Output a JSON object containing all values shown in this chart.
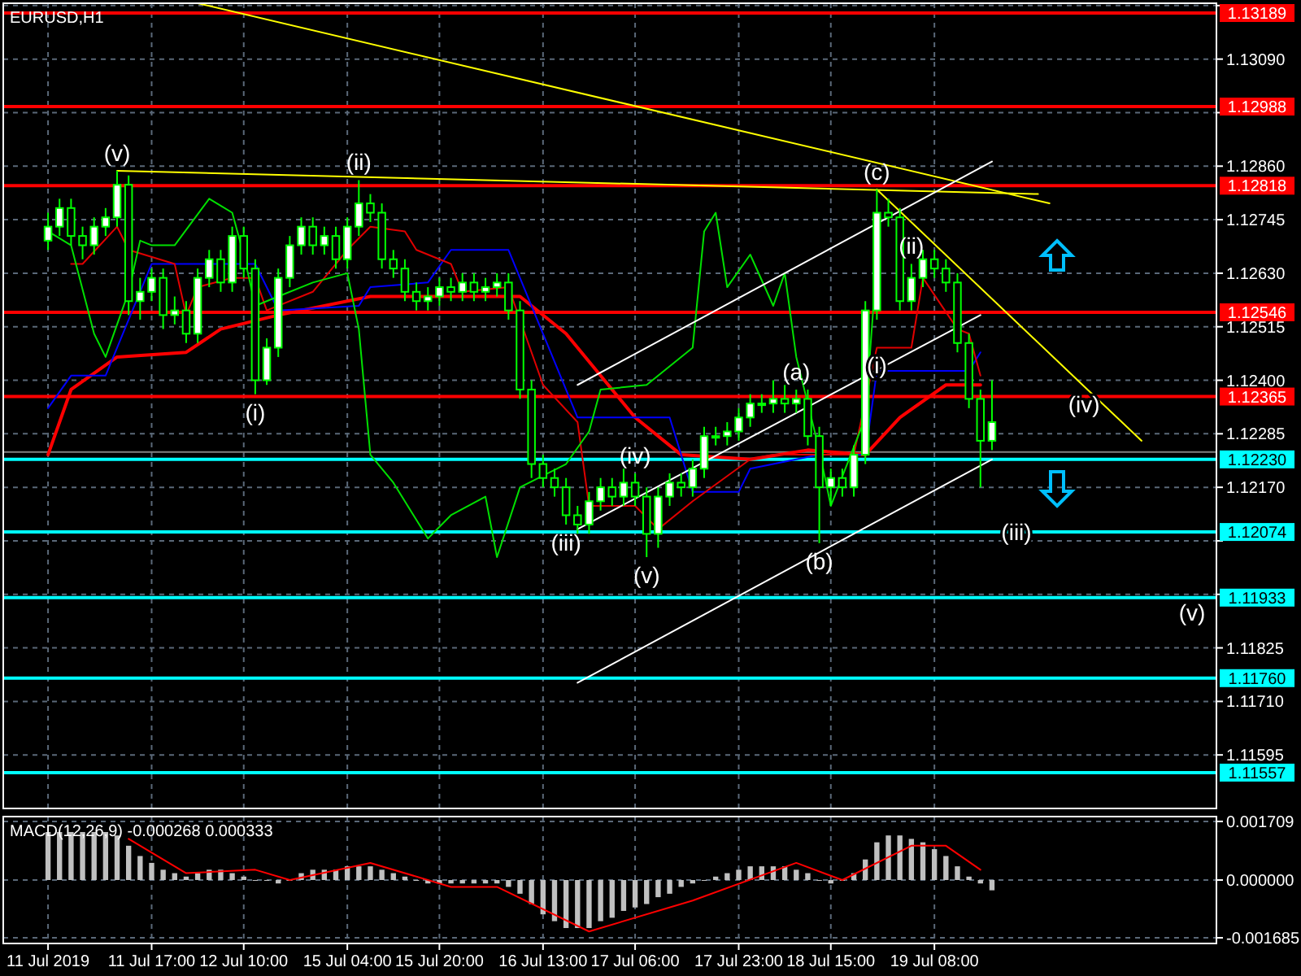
{
  "chart_data": [
    {
      "type": "candlestick",
      "title": "EURUSD,H1",
      "color": "#00ff00",
      "categories": [
        null,
        null,
        null,
        null,
        null,
        null,
        null,
        null,
        null,
        null,
        null,
        null,
        null,
        null,
        null,
        null,
        null,
        null,
        null,
        null,
        null,
        null,
        null,
        null,
        null,
        null,
        null,
        null,
        null,
        null,
        null,
        null,
        null,
        null,
        null,
        null,
        null,
        null,
        null,
        null,
        null,
        null,
        null,
        null,
        null,
        null,
        null,
        null,
        null,
        null,
        null,
        null,
        null,
        null,
        null,
        null,
        null,
        null,
        null,
        null,
        null,
        null,
        null,
        null,
        null,
        null,
        null,
        null,
        null,
        null,
        null,
        null,
        null,
        null,
        null,
        null,
        null,
        null,
        null,
        null,
        null,
        null,
        null,
        null,
        null,
        null,
        null,
        null,
        null,
        null,
        null,
        null,
        null,
        null,
        null,
        null,
        null,
        null,
        null,
        null,
        null,
        null
      ],
      "ohlc": [
        [
          1.127,
          1.1276,
          1.1268,
          1.1273
        ],
        [
          1.1273,
          1.1279,
          1.1271,
          1.1277
        ],
        [
          1.1277,
          1.1279,
          1.1269,
          1.1271
        ],
        [
          1.1271,
          1.1273,
          1.1266,
          1.1269
        ],
        [
          1.1269,
          1.1275,
          1.1267,
          1.1273
        ],
        [
          1.1273,
          1.1277,
          1.1271,
          1.1275
        ],
        [
          1.1275,
          1.1285,
          1.1273,
          1.1282
        ],
        [
          1.1282,
          1.1284,
          1.1254,
          1.1257
        ],
        [
          1.1257,
          1.1262,
          1.1253,
          1.1259
        ],
        [
          1.1259,
          1.1264,
          1.1257,
          1.1262
        ],
        [
          1.1262,
          1.1264,
          1.1251,
          1.1254
        ],
        [
          1.1254,
          1.1258,
          1.1252,
          1.1255
        ],
        [
          1.1255,
          1.1257,
          1.1248,
          1.125
        ],
        [
          1.125,
          1.1264,
          1.1248,
          1.1262
        ],
        [
          1.1262,
          1.1268,
          1.126,
          1.1266
        ],
        [
          1.1266,
          1.1268,
          1.1259,
          1.1261
        ],
        [
          1.1261,
          1.1273,
          1.1259,
          1.1271
        ],
        [
          1.1271,
          1.1273,
          1.1262,
          1.1264
        ],
        [
          1.1264,
          1.1266,
          1.1237,
          1.124
        ],
        [
          1.124,
          1.1249,
          1.1239,
          1.1247
        ],
        [
          1.1247,
          1.1264,
          1.1245,
          1.1262
        ],
        [
          1.1262,
          1.1271,
          1.126,
          1.1269
        ],
        [
          1.1269,
          1.1275,
          1.1267,
          1.1273
        ],
        [
          1.1273,
          1.1275,
          1.1267,
          1.1269
        ],
        [
          1.1269,
          1.1273,
          1.1267,
          1.1271
        ],
        [
          1.1271,
          1.1273,
          1.1264,
          1.1266
        ],
        [
          1.1266,
          1.1275,
          1.1264,
          1.1273
        ],
        [
          1.1273,
          1.1283,
          1.1271,
          1.1278
        ],
        [
          1.1278,
          1.128,
          1.1274,
          1.1276
        ],
        [
          1.1276,
          1.1278,
          1.1264,
          1.1266
        ],
        [
          1.1266,
          1.1268,
          1.1262,
          1.1264
        ],
        [
          1.1264,
          1.1266,
          1.1257,
          1.1259
        ],
        [
          1.1259,
          1.1261,
          1.1255,
          1.1257
        ],
        [
          1.1257,
          1.126,
          1.1255,
          1.1258
        ],
        [
          1.1258,
          1.1262,
          1.1256,
          1.126
        ],
        [
          1.126,
          1.1262,
          1.1257,
          1.1259
        ],
        [
          1.1259,
          1.1263,
          1.1257,
          1.1261
        ],
        [
          1.1261,
          1.1263,
          1.1257,
          1.1259
        ],
        [
          1.1259,
          1.1262,
          1.1257,
          1.126
        ],
        [
          1.126,
          1.1263,
          1.1258,
          1.1261
        ],
        [
          1.1261,
          1.1263,
          1.1253,
          1.1255
        ],
        [
          1.1255,
          1.1257,
          1.1236,
          1.1238
        ],
        [
          1.1238,
          1.124,
          1.1219,
          1.1222
        ],
        [
          1.1222,
          1.1224,
          1.1217,
          1.1219
        ],
        [
          1.1219,
          1.1221,
          1.1215,
          1.1217
        ],
        [
          1.1217,
          1.1219,
          1.1209,
          1.1211
        ],
        [
          1.1211,
          1.1213,
          1.1207,
          1.1209
        ],
        [
          1.1209,
          1.1216,
          1.1207,
          1.1214
        ],
        [
          1.1214,
          1.1219,
          1.1212,
          1.1217
        ],
        [
          1.1217,
          1.1219,
          1.1213,
          1.1215
        ],
        [
          1.1215,
          1.1221,
          1.1213,
          1.1218
        ],
        [
          1.1218,
          1.122,
          1.1213,
          1.1215
        ],
        [
          1.1215,
          1.1217,
          1.1202,
          1.1207
        ],
        [
          1.1207,
          1.1217,
          1.1204,
          1.1215
        ],
        [
          1.1215,
          1.122,
          1.1213,
          1.1218
        ],
        [
          1.1218,
          1.122,
          1.1215,
          1.1217
        ],
        [
          1.1217,
          1.1223,
          1.1215,
          1.1221
        ],
        [
          1.1221,
          1.123,
          1.1219,
          1.1228
        ],
        [
          1.1228,
          1.123,
          1.1226,
          1.1228
        ],
        [
          1.1228,
          1.1231,
          1.1226,
          1.1229
        ],
        [
          1.1229,
          1.1234,
          1.1227,
          1.1232
        ],
        [
          1.1232,
          1.1237,
          1.123,
          1.1235
        ],
        [
          1.1235,
          1.1237,
          1.1233,
          1.1235
        ],
        [
          1.1235,
          1.124,
          1.1233,
          1.1236
        ],
        [
          1.1236,
          1.1239,
          1.1233,
          1.1235
        ],
        [
          1.1235,
          1.1238,
          1.1233,
          1.1236
        ],
        [
          1.1236,
          1.1238,
          1.1226,
          1.1228
        ],
        [
          1.1228,
          1.123,
          1.1205,
          1.1217
        ],
        [
          1.1217,
          1.1221,
          1.1213,
          1.1219
        ],
        [
          1.1219,
          1.1221,
          1.1215,
          1.1217
        ],
        [
          1.1217,
          1.1226,
          1.1215,
          1.1224
        ],
        [
          1.1224,
          1.1257,
          1.1222,
          1.1255
        ],
        [
          1.1255,
          1.1281,
          1.1253,
          1.1276
        ],
        [
          1.1276,
          1.1279,
          1.1273,
          1.1275
        ],
        [
          1.1275,
          1.1277,
          1.1255,
          1.1257
        ],
        [
          1.1257,
          1.1265,
          1.1255,
          1.1262
        ],
        [
          1.1262,
          1.1268,
          1.126,
          1.1266
        ],
        [
          1.1266,
          1.1268,
          1.1262,
          1.1264
        ],
        [
          1.1264,
          1.1266,
          1.1259,
          1.1261
        ],
        [
          1.1261,
          1.1263,
          1.1246,
          1.1248
        ],
        [
          1.1248,
          1.125,
          1.1234,
          1.1236
        ],
        [
          1.1236,
          1.1238,
          1.1217,
          1.1227
        ],
        [
          1.1227,
          1.124,
          1.1225,
          1.1231
        ],
        null,
        null,
        null,
        null,
        null,
        null,
        null,
        null,
        null,
        null,
        null,
        null,
        null,
        null,
        null,
        null,
        null,
        null,
        null
      ],
      "series": [
        {
          "type": "line",
          "color": "#ff0000",
          "values": [
            1.1224,
            null,
            1.1238,
            null,
            null,
            null,
            1.1245,
            null,
            null,
            null,
            null,
            null,
            1.1246,
            null,
            null,
            1.1251,
            null,
            null,
            null,
            null,
            1.1254,
            null,
            null,
            null,
            null,
            null,
            null,
            null,
            1.1258,
            null,
            null,
            null,
            null,
            null,
            null,
            null,
            null,
            null,
            null,
            null,
            null,
            1.1258,
            null,
            null,
            null,
            1.125,
            null,
            null,
            null,
            null,
            null,
            1.1232,
            null,
            null,
            null,
            1.1224,
            null,
            null,
            null,
            null,
            null,
            1.1223,
            null,
            null,
            null,
            null,
            1.1225,
            null,
            null,
            null,
            null,
            1.1224,
            null,
            null,
            1.1232,
            null,
            null,
            null,
            1.1239,
            null,
            null,
            1.1239,
            null,
            null,
            null,
            null,
            null,
            null,
            null,
            null,
            null,
            null,
            null,
            null,
            null,
            null,
            null,
            null,
            null,
            null,
            null,
            null
          ]
        },
        {
          "type": "line",
          "color": "#0000ff",
          "values": [
            1.1234,
            null,
            1.1241,
            null,
            null,
            1.1241,
            null,
            null,
            null,
            1.1265,
            null,
            null,
            null,
            null,
            null,
            null,
            null,
            null,
            1.1265,
            null,
            1.1255,
            null,
            null,
            null,
            null,
            null,
            null,
            1.1256,
            1.126,
            null,
            null,
            null,
            null,
            1.1261,
            null,
            1.1268,
            null,
            null,
            null,
            null,
            1.1268,
            null,
            null,
            1.125,
            null,
            null,
            1.1232,
            null,
            null,
            null,
            1.1232,
            null,
            null,
            null,
            1.1232,
            null,
            1.1216,
            null,
            null,
            null,
            1.1216,
            1.1221,
            null,
            null,
            null,
            null,
            null,
            1.1224,
            null,
            null,
            null,
            1.1224,
            1.1242,
            null,
            null,
            null,
            null,
            null,
            null,
            null,
            1.1242,
            1.1246,
            null,
            null,
            null,
            null,
            null,
            null,
            null,
            null,
            null,
            null,
            null,
            null,
            null,
            null,
            null,
            null,
            null,
            null,
            null,
            null
          ]
        },
        {
          "type": "line",
          "color": "#e00000",
          "values": [
            null,
            null,
            1.1265,
            1.1265,
            null,
            null,
            1.1273,
            1.1268,
            null,
            null,
            null,
            1.1265,
            1.1254,
            1.126,
            null,
            null,
            1.1262,
            null,
            1.1262,
            1.1255,
            null,
            null,
            null,
            1.1259,
            null,
            null,
            1.1268,
            null,
            1.1273,
            null,
            null,
            1.1272,
            1.1268,
            null,
            null,
            1.1265,
            1.1259,
            null,
            null,
            null,
            1.126,
            null,
            null,
            1.1239,
            null,
            null,
            1.1231,
            1.1213,
            null,
            null,
            null,
            1.1213,
            null,
            1.1208,
            null,
            null,
            1.1214,
            null,
            null,
            null,
            null,
            1.1223,
            null,
            1.1224,
            null,
            null,
            null,
            null,
            null,
            null,
            1.1224,
            null,
            1.1247,
            null,
            null,
            1.1247,
            1.1262,
            null,
            null,
            1.1251,
            1.125,
            1.1241,
            null,
            null,
            null,
            null,
            null,
            null,
            null,
            null,
            null,
            null,
            null,
            null,
            null,
            null,
            null,
            null,
            null,
            null,
            null,
            null
          ]
        },
        {
          "type": "line",
          "color": "#00e000",
          "values": [
            1.1272,
            null,
            1.1269,
            null,
            1.125,
            1.1245,
            null,
            1.1259,
            1.127,
            1.1269,
            null,
            1.1269,
            null,
            null,
            1.1279,
            null,
            1.1276,
            1.1267,
            1.1256,
            null,
            1.1258,
            null,
            null,
            1.1261,
            null,
            null,
            1.1263,
            1.1251,
            1.1224,
            null,
            1.1218,
            null,
            null,
            1.1206,
            null,
            1.1211,
            null,
            null,
            1.1215,
            1.1202,
            null,
            1.1217,
            null,
            null,
            null,
            1.1222,
            null,
            1.1229,
            1.1238,
            null,
            null,
            null,
            1.1239,
            null,
            null,
            null,
            1.1247,
            1.1272,
            1.1276,
            1.126,
            null,
            1.1267,
            null,
            1.1256,
            1.1263,
            1.1245,
            null,
            1.1225,
            1.1213,
            null,
            null,
            1.1232,
            1.1266,
            null,
            null,
            null,
            null,
            null,
            null,
            null,
            null,
            null,
            null,
            null,
            null,
            null,
            null,
            null,
            null,
            null,
            null,
            null,
            null,
            null,
            null,
            null,
            null,
            null,
            null,
            null,
            null,
            null
          ]
        },
        {
          "type": "line",
          "color": "#ffff00",
          "values": [
            null,
            null,
            null,
            null,
            null,
            null,
            null,
            null,
            null,
            null,
            null,
            null,
            null,
            1.1321,
            null,
            null,
            null,
            null,
            null,
            null,
            null,
            null,
            null,
            null,
            null,
            null,
            null,
            null,
            null,
            null,
            null,
            null,
            null,
            null,
            null,
            null,
            null,
            null,
            null,
            null,
            null,
            null,
            null,
            null,
            null,
            null,
            null,
            null,
            null,
            null,
            null,
            null,
            null,
            null,
            null,
            null,
            null,
            null,
            null,
            null,
            null,
            null,
            null,
            null,
            null,
            null,
            null,
            null,
            null,
            null,
            null,
            null,
            null,
            null,
            null,
            null,
            null,
            null,
            null,
            null,
            null,
            null,
            null,
            null,
            null,
            null,
            null,
            1.1278,
            null,
            null,
            null,
            null,
            null,
            null,
            null,
            null,
            null,
            null,
            null,
            null,
            null,
            null
          ]
        },
        {
          "type": "line",
          "color": "#ffff00",
          "values": [
            null,
            null,
            null,
            null,
            null,
            null,
            1.1285,
            null,
            null,
            null,
            null,
            null,
            null,
            null,
            null,
            null,
            null,
            null,
            null,
            null,
            null,
            null,
            null,
            null,
            null,
            null,
            null,
            null,
            null,
            null,
            null,
            null,
            null,
            null,
            null,
            null,
            null,
            null,
            null,
            null,
            null,
            null,
            null,
            null,
            null,
            null,
            null,
            null,
            null,
            null,
            null,
            null,
            null,
            null,
            null,
            null,
            null,
            null,
            null,
            null,
            null,
            null,
            null,
            null,
            null,
            null,
            null,
            null,
            null,
            null,
            null,
            null,
            null,
            null,
            null,
            null,
            null,
            null,
            null,
            null,
            null,
            null,
            null,
            null,
            null,
            null,
            1.128,
            null,
            null,
            null,
            null,
            null,
            null,
            null,
            null,
            null,
            null,
            null,
            null,
            null,
            null,
            null
          ]
        },
        {
          "type": "line",
          "color": "#ffff00",
          "values": [
            null,
            null,
            null,
            null,
            null,
            null,
            null,
            null,
            null,
            null,
            null,
            null,
            null,
            null,
            null,
            null,
            null,
            null,
            null,
            null,
            null,
            null,
            null,
            null,
            null,
            null,
            null,
            null,
            null,
            null,
            null,
            null,
            null,
            null,
            null,
            null,
            null,
            null,
            null,
            null,
            null,
            null,
            null,
            null,
            null,
            null,
            null,
            null,
            null,
            null,
            null,
            null,
            null,
            null,
            null,
            null,
            null,
            null,
            null,
            null,
            null,
            null,
            null,
            null,
            null,
            null,
            null,
            null,
            null,
            null,
            null,
            null,
            1.1281,
            null,
            null,
            null,
            null,
            null,
            null,
            null,
            null,
            null,
            null,
            null,
            null,
            null,
            null,
            null,
            null,
            null,
            1.12387,
            null,
            null,
            null,
            null,
            1.1227,
            null,
            null,
            null,
            null,
            null,
            null
          ]
        },
        {
          "type": "line",
          "color": "#ffffff",
          "values": [
            null,
            null,
            null,
            null,
            null,
            null,
            null,
            null,
            null,
            null,
            null,
            null,
            null,
            null,
            null,
            null,
            null,
            null,
            null,
            null,
            null,
            null,
            null,
            null,
            null,
            null,
            null,
            null,
            null,
            null,
            null,
            null,
            null,
            null,
            null,
            null,
            null,
            null,
            null,
            null,
            null,
            null,
            null,
            null,
            null,
            null,
            1.1239,
            null,
            null,
            null,
            null,
            null,
            null,
            null,
            null,
            null,
            null,
            null,
            null,
            null,
            null,
            null,
            null,
            null,
            null,
            null,
            null,
            null,
            null,
            null,
            null,
            null,
            null,
            null,
            null,
            null,
            null,
            null,
            null,
            null,
            null,
            null,
            1.1287,
            null,
            null,
            null,
            null,
            null,
            null,
            null,
            null,
            null,
            null,
            null,
            null,
            null,
            null,
            null,
            null,
            null,
            null,
            null
          ]
        },
        {
          "type": "line",
          "color": "#ffffff",
          "values": [
            null,
            null,
            null,
            null,
            null,
            null,
            null,
            null,
            null,
            null,
            null,
            null,
            null,
            null,
            null,
            null,
            null,
            null,
            null,
            null,
            null,
            null,
            null,
            null,
            null,
            null,
            null,
            null,
            null,
            null,
            null,
            null,
            null,
            null,
            null,
            null,
            null,
            null,
            null,
            null,
            null,
            null,
            null,
            null,
            null,
            null,
            1.1208,
            null,
            null,
            null,
            null,
            null,
            null,
            null,
            null,
            null,
            null,
            null,
            null,
            null,
            null,
            null,
            null,
            null,
            null,
            null,
            null,
            null,
            null,
            null,
            null,
            null,
            null,
            null,
            null,
            null,
            null,
            null,
            null,
            null,
            null,
            1.1254,
            null,
            null,
            null,
            null,
            null,
            null,
            null,
            null,
            null,
            null,
            null,
            null,
            null,
            null,
            null,
            null,
            null,
            null,
            null,
            null
          ]
        },
        {
          "type": "line",
          "color": "#ffffff",
          "values": [
            null,
            null,
            null,
            null,
            null,
            null,
            null,
            null,
            null,
            null,
            null,
            null,
            null,
            null,
            null,
            null,
            null,
            null,
            null,
            null,
            null,
            null,
            null,
            null,
            null,
            null,
            null,
            null,
            null,
            null,
            null,
            null,
            null,
            null,
            null,
            null,
            null,
            null,
            null,
            null,
            null,
            null,
            null,
            null,
            null,
            null,
            1.1175,
            null,
            null,
            null,
            null,
            null,
            null,
            null,
            null,
            null,
            null,
            null,
            null,
            null,
            null,
            null,
            null,
            null,
            null,
            null,
            null,
            null,
            null,
            null,
            null,
            null,
            null,
            null,
            null,
            null,
            null,
            null,
            null,
            null,
            null,
            null,
            1.1223,
            null,
            null,
            null,
            null,
            null,
            null,
            null,
            null,
            null,
            null,
            null,
            null,
            null,
            null,
            null,
            null,
            null,
            null,
            null
          ]
        }
      ],
      "ylim": [
        1.1148,
        1.1321
      ],
      "yticks": [
        {
          "value": 1.13205,
          "label": null
        },
        {
          "value": 1.1309,
          "label": "1.13090"
        },
        {
          "value": 1.12975,
          "label": null
        },
        {
          "value": 1.1286,
          "label": "1.12860"
        },
        {
          "value": 1.12745,
          "label": "1.12745"
        },
        {
          "value": 1.1263,
          "label": "1.12630"
        },
        {
          "value": 1.12515,
          "label": "1.12515"
        },
        {
          "value": 1.124,
          "label": "1.12400"
        },
        {
          "value": 1.12285,
          "label": "1.12285"
        },
        {
          "value": 1.1217,
          "label": "1.12170"
        },
        {
          "value": 1.12055,
          "label": null
        },
        {
          "value": 1.1194,
          "label": null
        },
        {
          "value": 1.11825,
          "label": "1.11825"
        },
        {
          "value": 1.1171,
          "label": "1.11710"
        },
        {
          "value": 1.11595,
          "label": "1.11595"
        }
      ],
      "tick_labels": "y",
      "grid": true,
      "ref_lines": [
        {
          "axis": "y",
          "value": 1.12246,
          "label": null,
          "color": "#808080"
        },
        {
          "axis": "y",
          "value": 1.13189,
          "label": "1.13189",
          "color": "#ff0000"
        },
        {
          "axis": "y",
          "value": 1.12988,
          "label": "1.12988",
          "color": "#ff0000"
        },
        {
          "axis": "y",
          "value": 1.12818,
          "label": "1.12818",
          "color": "#ff0000"
        },
        {
          "axis": "y",
          "value": 1.12546,
          "label": "1.12546",
          "color": "#ff0000"
        },
        {
          "axis": "y",
          "value": 1.12365,
          "label": "1.12365",
          "color": "#ff0000"
        },
        {
          "axis": "y",
          "value": 1.1223,
          "label": "1.12230",
          "color": "#00ffff"
        },
        {
          "axis": "y",
          "value": 1.12074,
          "label": "1.12074",
          "color": "#00ffff"
        },
        {
          "axis": "y",
          "value": 1.11933,
          "label": "1.11933",
          "color": "#00ffff"
        },
        {
          "axis": "y",
          "value": 1.1176,
          "label": "1.11760",
          "color": "#00ffff"
        },
        {
          "axis": "y",
          "value": 1.11557,
          "label": "1.11557",
          "color": "#00ffff"
        }
      ],
      "annotations": [
        {
          "text": "(v)",
          "y": 1.1285
        },
        {
          "text": "(ii)",
          "y": 1.1283
        },
        {
          "text": "(i)",
          "y": 1.1237
        },
        {
          "text": "(iii)",
          "y": 1.1209
        },
        {
          "text": "(iv)",
          "y": 1.122
        },
        {
          "text": "(v)",
          "y": 1.1202
        },
        {
          "text": "(a)",
          "y": 1.1238
        },
        {
          "text": "(b)",
          "y": 1.1205
        },
        {
          "text": "(c)",
          "y": 1.1281
        },
        {
          "text": "(ii)",
          "y": 1.1265
        },
        {
          "text": "(i)",
          "y": 1.1247
        },
        {
          "text": "(iii)",
          "y": 1.12074
        },
        {
          "text": "(iv)",
          "y": 1.12387
        },
        {
          "text": "(v)",
          "y": 1.11933
        }
      ]
    },
    {
      "type": "bar",
      "title": "MACD(12,26,9) -0.000268 0.000333",
      "categories": [
        "11 Jul 2019",
        null,
        null,
        null,
        null,
        null,
        null,
        null,
        null,
        "11 Jul 17:00",
        null,
        null,
        null,
        null,
        null,
        null,
        null,
        "12 Jul 10:00",
        null,
        null,
        null,
        null,
        null,
        null,
        null,
        null,
        "15 Jul 04:00",
        null,
        null,
        null,
        null,
        null,
        null,
        null,
        "15 Jul 20:00",
        null,
        null,
        null,
        null,
        null,
        null,
        null,
        null,
        "16 Jul 13:00",
        null,
        null,
        null,
        null,
        null,
        null,
        null,
        "17 Jul 06:00",
        null,
        null,
        null,
        null,
        null,
        null,
        null,
        null,
        "17 Jul 23:00",
        null,
        null,
        null,
        null,
        null,
        null,
        null,
        "18 Jul 15:00",
        null,
        null,
        null,
        null,
        null,
        null,
        null,
        null,
        "19 Jul 08:00",
        null,
        null,
        null,
        null,
        null,
        null,
        null,
        null,
        null,
        null,
        null,
        null,
        null,
        null,
        null,
        null,
        null,
        null,
        null,
        null,
        null,
        null,
        null,
        null
      ],
      "series": [
        {
          "type": "bar",
          "color": "#c0c0c0",
          "values": [
            0.0014,
            0.0014,
            0.0014,
            0.0014,
            0.0014,
            0.0014,
            0.0013,
            0.001,
            0.0007,
            0.0005,
            0.0003,
            0.0002,
            0.0001,
            0.0002,
            0.0003,
            0.0003,
            0.0002,
            0.0001,
            0.0,
            0.0,
            -0.0001,
            0.0,
            0.0002,
            0.0003,
            0.0003,
            0.0003,
            0.0004,
            0.0004,
            0.0004,
            0.0003,
            0.0002,
            0.0001,
            0.0,
            -0.0001,
            -0.0001,
            -0.0001,
            -0.0001,
            -0.0001,
            -0.0001,
            -0.0001,
            -0.0002,
            -0.0004,
            -0.0007,
            -0.001,
            -0.0012,
            -0.0014,
            -0.0014,
            -0.0014,
            -0.0012,
            -0.0011,
            -0.0009,
            -0.0008,
            -0.0007,
            -0.0005,
            -0.0004,
            -0.0002,
            -0.0001,
            0.0,
            0.0001,
            0.0002,
            0.0003,
            0.0004,
            0.0004,
            0.0004,
            0.0004,
            0.0003,
            0.0002,
            0.0,
            -0.0001,
            0.0,
            0.0002,
            0.0006,
            0.0011,
            0.0013,
            0.0013,
            0.0012,
            0.0011,
            0.0009,
            0.0007,
            0.0004,
            0.0001,
            -0.0001,
            -0.0003,
            null,
            null,
            null,
            null,
            null,
            null,
            null,
            null,
            null,
            null,
            null,
            null,
            null,
            null,
            null,
            null,
            null,
            null,
            null
          ]
        },
        {
          "type": "line",
          "color": "#ff0000",
          "values": [
            null,
            null,
            null,
            null,
            null,
            null,
            null,
            0.0012,
            null,
            null,
            null,
            null,
            0.0002,
            null,
            null,
            null,
            null,
            null,
            0.0003,
            null,
            null,
            0.0,
            null,
            null,
            null,
            null,
            null,
            null,
            0.0005,
            null,
            null,
            null,
            null,
            null,
            null,
            -0.0002,
            null,
            null,
            null,
            -0.0002,
            null,
            null,
            null,
            null,
            null,
            null,
            null,
            -0.0015,
            null,
            null,
            null,
            null,
            null,
            null,
            null,
            null,
            -0.0006,
            null,
            null,
            null,
            null,
            null,
            null,
            null,
            null,
            0.0005,
            null,
            null,
            null,
            0.0,
            null,
            null,
            null,
            null,
            null,
            0.001,
            null,
            null,
            0.001,
            null,
            null,
            0.0003,
            null,
            null,
            null,
            null,
            null,
            null,
            null,
            null,
            null,
            null,
            null,
            null,
            null,
            null,
            null,
            null,
            null,
            null,
            null,
            null
          ]
        }
      ],
      "ylim": [
        -0.00185,
        0.00185
      ],
      "yticks": [
        {
          "value": 0.001709,
          "label": "0.001709"
        },
        {
          "value": 0,
          "label": "0.000000"
        },
        {
          "value": -0.001685,
          "label": "-0.001685"
        }
      ],
      "grid": true
    }
  ]
}
